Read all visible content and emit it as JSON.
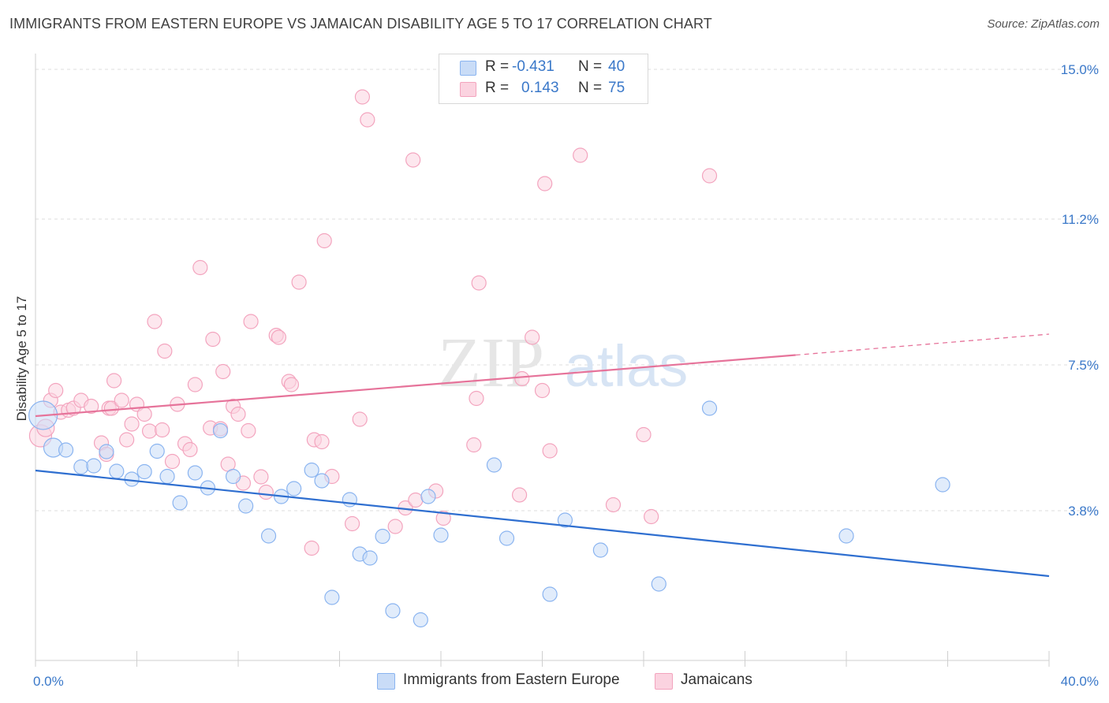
{
  "title": "IMMIGRANTS FROM EASTERN EUROPE VS JAMAICAN DISABILITY AGE 5 TO 17 CORRELATION CHART",
  "source": "Source: ZipAtlas.com",
  "watermark": {
    "zip": "ZIP",
    "atlas": "atlas"
  },
  "stats": {
    "r_label": "R =",
    "n_label": "N =",
    "rows": [
      {
        "r": "-0.431",
        "n": "40",
        "color": "#8ab4f0"
      },
      {
        "r": "0.143",
        "n": "75",
        "color": "#f3a4be"
      }
    ]
  },
  "legend": [
    {
      "label": "Immigrants from Eastern Europe",
      "color": "#8ab4f0"
    },
    {
      "label": "Jamaicans",
      "color": "#f3a4be"
    }
  ],
  "chart_data": {
    "type": "scatter",
    "title": "IMMIGRANTS FROM EASTERN EUROPE VS JAMAICAN DISABILITY AGE 5 TO 17 CORRELATION CHART",
    "xlabel": "",
    "ylabel": "Disability Age 5 to 17",
    "xlim": [
      0,
      40
    ],
    "ylim": [
      0,
      15.4
    ],
    "x_tick_labels": [
      "0.0%",
      "40.0%"
    ],
    "y_ticks": [
      3.8,
      7.5,
      11.2,
      15.0
    ],
    "y_tick_labels": [
      "3.8%",
      "7.5%",
      "11.2%",
      "15.0%"
    ],
    "grid": true,
    "legend_position": "bottom",
    "series": [
      {
        "name": "Immigrants from Eastern Europe",
        "color": "#8ab4f0",
        "trend_color": "#2f6fd0",
        "trend": {
          "x": [
            0,
            40
          ],
          "y": [
            4.82,
            2.14
          ]
        },
        "points": [
          [
            0.3,
            6.22,
            18
          ],
          [
            0.7,
            5.4,
            12
          ],
          [
            1.2,
            5.34,
            9
          ],
          [
            1.8,
            4.91,
            9
          ],
          [
            2.3,
            4.94,
            9
          ],
          [
            2.8,
            5.3,
            9
          ],
          [
            3.2,
            4.8,
            9
          ],
          [
            3.8,
            4.6,
            9
          ],
          [
            4.3,
            4.79,
            9
          ],
          [
            4.8,
            5.31,
            9
          ],
          [
            5.2,
            4.67,
            9
          ],
          [
            5.7,
            4.0,
            9
          ],
          [
            6.3,
            4.76,
            9
          ],
          [
            6.8,
            4.38,
            9
          ],
          [
            7.3,
            5.83,
            9
          ],
          [
            7.8,
            4.67,
            9
          ],
          [
            8.3,
            3.92,
            9
          ],
          [
            9.2,
            3.16,
            9
          ],
          [
            9.7,
            4.16,
            9
          ],
          [
            10.2,
            4.36,
            9
          ],
          [
            10.9,
            4.83,
            9
          ],
          [
            11.3,
            4.56,
            9
          ],
          [
            11.7,
            1.6,
            9
          ],
          [
            12.4,
            4.08,
            9
          ],
          [
            12.8,
            2.7,
            9
          ],
          [
            13.2,
            2.6,
            9
          ],
          [
            13.7,
            3.15,
            9
          ],
          [
            14.1,
            1.26,
            9
          ],
          [
            15.2,
            1.03,
            9
          ],
          [
            15.5,
            4.16,
            9
          ],
          [
            16.0,
            3.18,
            9
          ],
          [
            18.1,
            4.96,
            9
          ],
          [
            18.6,
            3.1,
            9
          ],
          [
            20.3,
            1.68,
            9
          ],
          [
            20.9,
            3.56,
            9
          ],
          [
            22.3,
            2.8,
            9
          ],
          [
            24.6,
            1.94,
            9
          ],
          [
            26.6,
            6.4,
            9
          ],
          [
            32.0,
            3.16,
            9
          ],
          [
            35.8,
            4.46,
            9
          ]
        ]
      },
      {
        "name": "Jamaicans",
        "color": "#f3a4be",
        "trend_color": "#e6739a",
        "trend": {
          "x": [
            0,
            30
          ],
          "y": [
            6.2,
            7.75
          ]
        },
        "trend_dashed": {
          "x": [
            30,
            40
          ],
          "y": [
            7.75,
            8.28
          ]
        },
        "points": [
          [
            0.2,
            5.7,
            14
          ],
          [
            0.4,
            5.9,
            11
          ],
          [
            0.6,
            6.6,
            9
          ],
          [
            0.8,
            6.85,
            9
          ],
          [
            1.0,
            6.3,
            9
          ],
          [
            1.3,
            6.35,
            9
          ],
          [
            1.5,
            6.4,
            9
          ],
          [
            1.8,
            6.6,
            9
          ],
          [
            2.2,
            6.45,
            9
          ],
          [
            2.6,
            5.52,
            9
          ],
          [
            2.8,
            5.23,
            9
          ],
          [
            2.9,
            6.4,
            9
          ],
          [
            3.0,
            6.4,
            9
          ],
          [
            3.1,
            7.1,
            9
          ],
          [
            3.4,
            6.6,
            9
          ],
          [
            3.6,
            5.6,
            9
          ],
          [
            3.8,
            6.0,
            9
          ],
          [
            4.0,
            6.5,
            9
          ],
          [
            4.3,
            6.25,
            9
          ],
          [
            4.5,
            5.82,
            9
          ],
          [
            4.7,
            8.6,
            9
          ],
          [
            5.0,
            5.85,
            9
          ],
          [
            5.1,
            7.85,
            9
          ],
          [
            5.4,
            5.05,
            9
          ],
          [
            5.6,
            6.5,
            9
          ],
          [
            5.9,
            5.5,
            9
          ],
          [
            6.1,
            5.35,
            9
          ],
          [
            6.3,
            7.0,
            9
          ],
          [
            6.5,
            9.97,
            9
          ],
          [
            6.9,
            5.9,
            9
          ],
          [
            7.0,
            8.15,
            9
          ],
          [
            7.3,
            5.88,
            9
          ],
          [
            7.4,
            7.33,
            9
          ],
          [
            7.6,
            4.98,
            9
          ],
          [
            7.8,
            6.45,
            9
          ],
          [
            8.0,
            6.25,
            9
          ],
          [
            8.2,
            4.5,
            9
          ],
          [
            8.4,
            5.83,
            9
          ],
          [
            8.5,
            8.6,
            9
          ],
          [
            8.9,
            4.66,
            9
          ],
          [
            9.1,
            4.27,
            9
          ],
          [
            9.5,
            8.25,
            9
          ],
          [
            9.6,
            8.2,
            9
          ],
          [
            10.0,
            7.08,
            9
          ],
          [
            10.1,
            7.0,
            9
          ],
          [
            10.4,
            9.6,
            9
          ],
          [
            10.9,
            2.85,
            9
          ],
          [
            11.0,
            5.6,
            9
          ],
          [
            11.3,
            5.55,
            9
          ],
          [
            11.4,
            10.65,
            9
          ],
          [
            11.7,
            4.67,
            9
          ],
          [
            12.5,
            3.47,
            9
          ],
          [
            12.8,
            6.12,
            9
          ],
          [
            12.9,
            14.3,
            9
          ],
          [
            13.1,
            13.72,
            9
          ],
          [
            14.2,
            3.4,
            9
          ],
          [
            14.6,
            3.87,
            9
          ],
          [
            14.9,
            12.7,
            9
          ],
          [
            15.0,
            4.07,
            9
          ],
          [
            15.8,
            4.3,
            9
          ],
          [
            16.1,
            3.61,
            9
          ],
          [
            17.3,
            5.47,
            9
          ],
          [
            17.4,
            6.65,
            9
          ],
          [
            17.5,
            9.58,
            9
          ],
          [
            19.1,
            4.2,
            9
          ],
          [
            19.2,
            7.15,
            9
          ],
          [
            19.6,
            8.2,
            9
          ],
          [
            20.0,
            6.85,
            9
          ],
          [
            20.1,
            12.1,
            9
          ],
          [
            20.3,
            5.32,
            9
          ],
          [
            21.5,
            12.82,
            9
          ],
          [
            22.8,
            3.95,
            9
          ],
          [
            24.0,
            5.73,
            9
          ],
          [
            24.3,
            3.65,
            9
          ],
          [
            26.6,
            12.3,
            9
          ]
        ]
      }
    ]
  }
}
